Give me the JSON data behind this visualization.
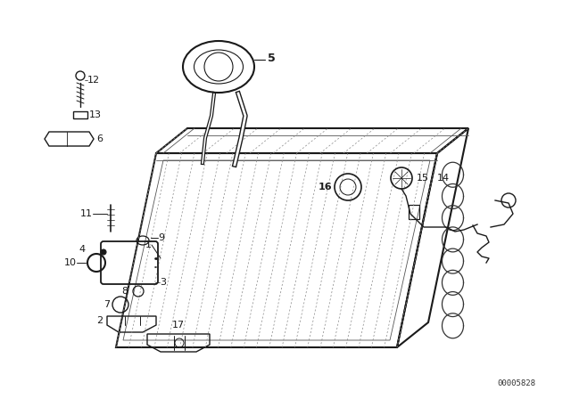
{
  "bg_color": "#ffffff",
  "line_color": "#1a1a1a",
  "part_number_text": "00005828",
  "figsize": [
    6.4,
    4.48
  ],
  "dpi": 100
}
